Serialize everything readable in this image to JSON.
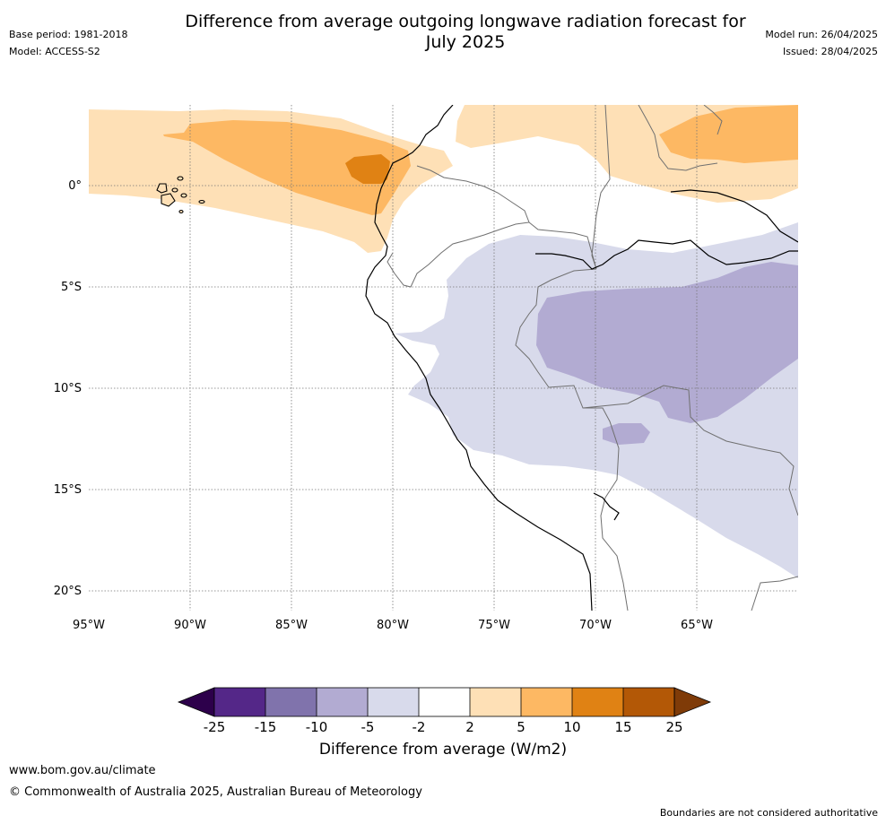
{
  "title_line1": "Difference from average outgoing longwave radiation forecast for",
  "title_line2": "July 2025",
  "meta_left": {
    "base_period": "Base period: 1981-2018",
    "model": "Model: ACCESS-S2"
  },
  "meta_right": {
    "model_run": "Model run: 26/04/2025",
    "issued": "Issued: 28/04/2025"
  },
  "map": {
    "lon_ticks": [
      "95°W",
      "90°W",
      "85°W",
      "80°W",
      "75°W",
      "70°W",
      "65°W"
    ],
    "lat_ticks": [
      "0°",
      "5°S",
      "10°S",
      "15°S",
      "20°S"
    ],
    "colors": {
      "ocean_bg": "#ffffff",
      "light_orange": "#fee0b6",
      "orange": "#fdb863",
      "dark_orange": "#e08214",
      "light_purple": "#d8daeb",
      "purple": "#b2abd2"
    }
  },
  "colorbar": {
    "bins": [
      {
        "color": "#2d004b"
      },
      {
        "color": "#542788"
      },
      {
        "color": "#8073ac"
      },
      {
        "color": "#b2abd2"
      },
      {
        "color": "#d8daeb"
      },
      {
        "color": "#ffffff"
      },
      {
        "color": "#fee0b6"
      },
      {
        "color": "#fdb863"
      },
      {
        "color": "#e08214"
      },
      {
        "color": "#b35806"
      },
      {
        "color": "#7f3b08"
      }
    ],
    "ticks": [
      "-25",
      "-15",
      "-10",
      "-5",
      "-2",
      "2",
      "5",
      "10",
      "15",
      "25"
    ],
    "label": "Difference from average (W/m2)"
  },
  "footer": {
    "url": "www.bom.gov.au/climate",
    "copyright": "© Commonwealth of Australia 2025, Australian Bureau of Meteorology",
    "disclaimer": "Boundaries are not considered authoritative"
  }
}
